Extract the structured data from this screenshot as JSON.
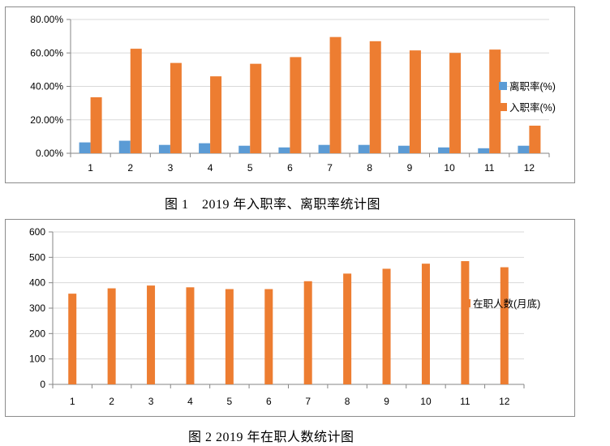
{
  "colors": {
    "blue": "#5b9bd5",
    "orange": "#ed7d31",
    "axis": "#868686",
    "grid": "#d9d9d9"
  },
  "captions": {
    "fig1": "图 1　2019 年入职率、离职率统计图",
    "fig2": "图 2 2019 年在职人数统计图"
  },
  "chart_data": [
    {
      "type": "bar",
      "categories": [
        "1",
        "2",
        "3",
        "4",
        "5",
        "6",
        "7",
        "8",
        "9",
        "10",
        "11",
        "12"
      ],
      "series": [
        {
          "name": "离职率(%)",
          "color": "#5b9bd5",
          "values": [
            6.5,
            7.5,
            5.0,
            6.0,
            4.5,
            3.5,
            5.0,
            5.0,
            4.5,
            3.5,
            3.0,
            4.5
          ]
        },
        {
          "name": "入职率(%)",
          "color": "#ed7d31",
          "values": [
            33.5,
            62.5,
            54.0,
            46.0,
            53.5,
            57.5,
            69.5,
            67.0,
            61.5,
            60.0,
            62.0,
            16.5
          ]
        }
      ],
      "ylim": [
        0,
        80
      ],
      "yticks": [
        "0.00%",
        "20.00%",
        "40.00%",
        "60.00%",
        "80.00%"
      ],
      "y_tick_values": [
        0,
        20,
        40,
        60,
        80
      ],
      "grid": true,
      "legend": "right"
    },
    {
      "type": "bar",
      "categories": [
        "1",
        "2",
        "3",
        "4",
        "5",
        "6",
        "7",
        "8",
        "9",
        "10",
        "11",
        "12"
      ],
      "series": [
        {
          "name": "在职人数(月底)",
          "color": "#ed7d31",
          "values": [
            357,
            378,
            389,
            382,
            375,
            375,
            406,
            436,
            455,
            475,
            485,
            461
          ]
        }
      ],
      "ylim": [
        0,
        600
      ],
      "yticks": [
        "0",
        "100",
        "200",
        "300",
        "400",
        "500",
        "600"
      ],
      "y_tick_values": [
        0,
        100,
        200,
        300,
        400,
        500,
        600
      ],
      "grid": true,
      "legend": "right"
    }
  ]
}
